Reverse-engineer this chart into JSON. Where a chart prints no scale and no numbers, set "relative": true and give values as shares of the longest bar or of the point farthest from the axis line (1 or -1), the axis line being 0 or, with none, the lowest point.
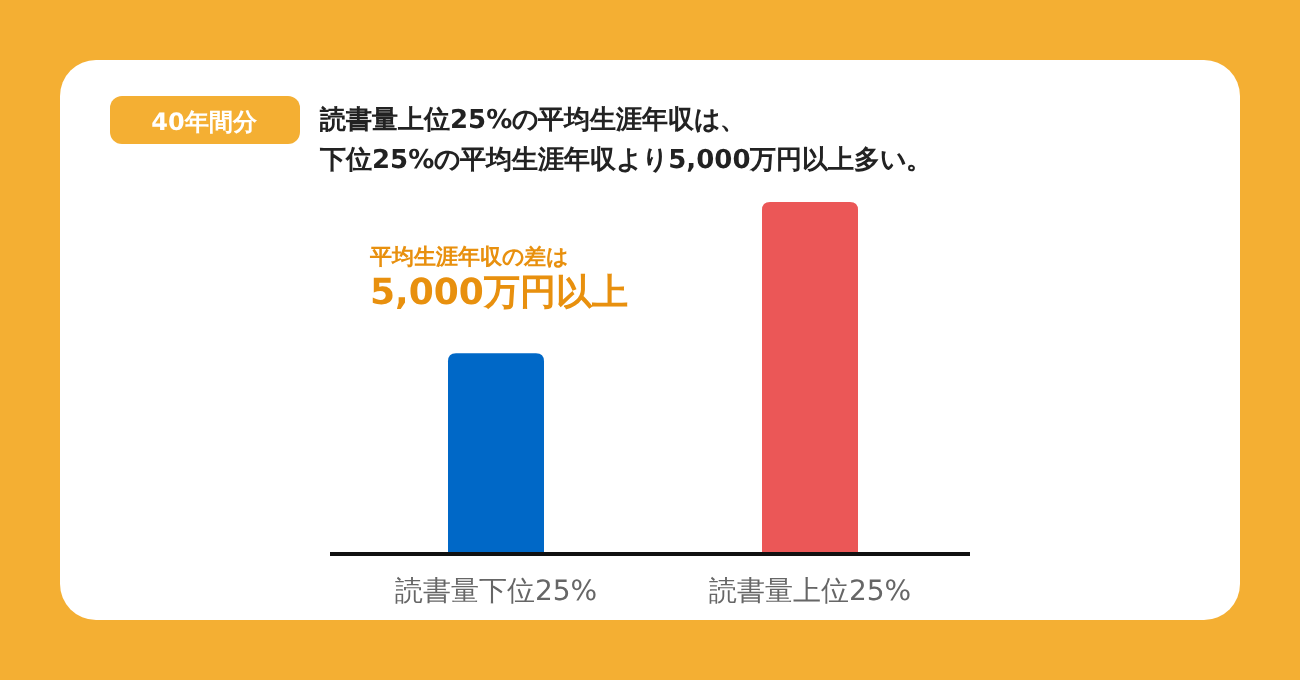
{
  "chart_data": {
    "type": "bar",
    "title": "読書量上位25%の平均生涯年収は、",
    "subtitle": "下位25%の平均生涯年収より5,000万円以上多い。",
    "categories": [
      "読書量下位25%",
      "読書量上位25%"
    ],
    "values": [
      0.57,
      1
    ],
    "colors": [
      "#0068c7",
      "#eb5757"
    ],
    "relative": true,
    "annotations": [
      "40年間分",
      "平均生涯年収の差は",
      "5,000万円以上"
    ]
  }
}
